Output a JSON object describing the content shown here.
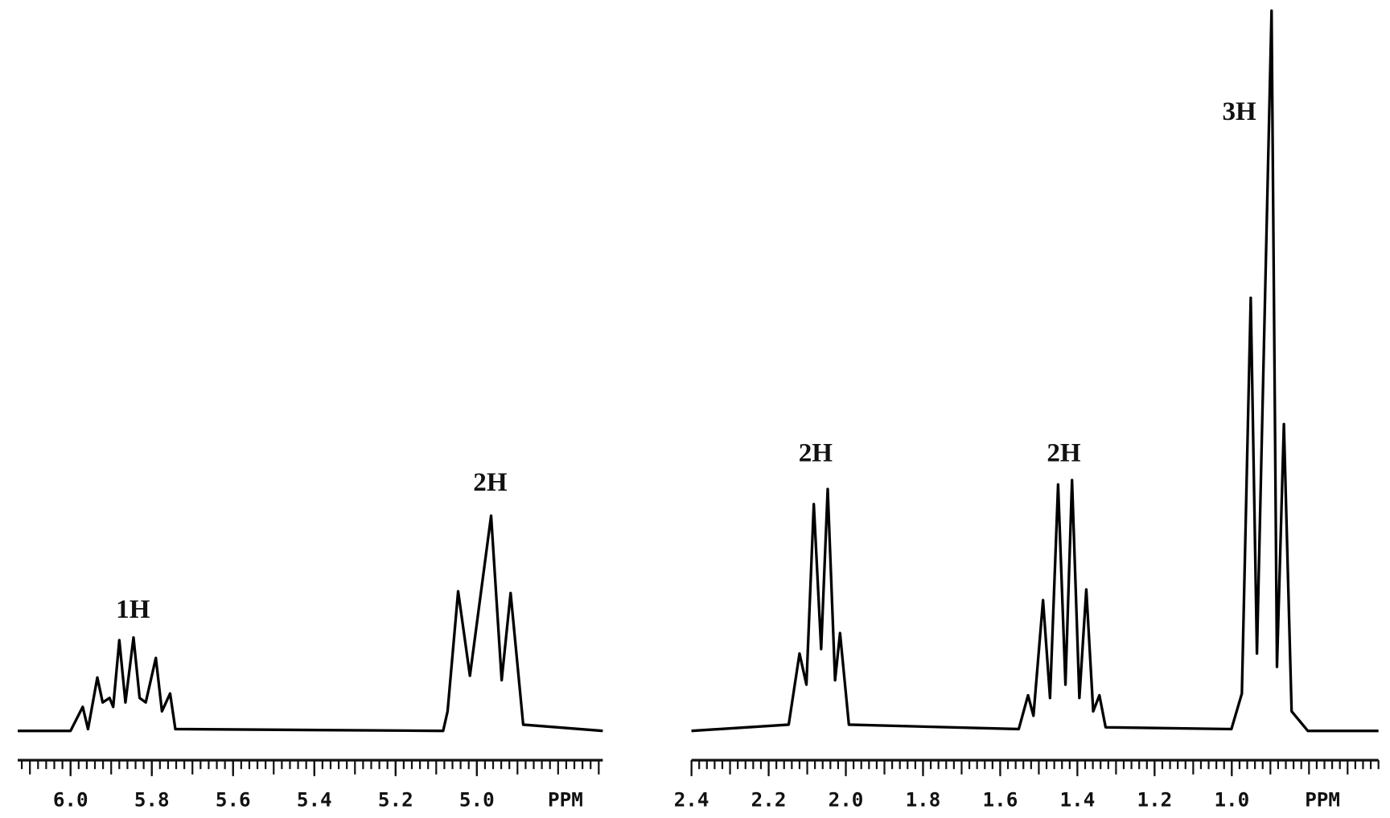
{
  "chart_data": [
    {
      "type": "line",
      "xlabel": "PPM",
      "xlim": [
        6.13,
        4.69
      ],
      "ylim": [
        0,
        822
      ],
      "xminor": 0.02,
      "color": "#000000",
      "xticks": [
        {
          "value": 6,
          "label": "6.0"
        },
        5.8,
        5.6,
        5.4,
        5.2,
        {
          "value": 5,
          "label": "5.0"
        }
      ],
      "annotations": [
        "1H",
        "2H"
      ],
      "x": [
        6.13,
        6.0,
        5.97,
        5.957,
        5.934,
        5.921,
        5.904,
        5.895,
        5.88,
        5.865,
        5.845,
        5.83,
        5.815,
        5.79,
        5.775,
        5.755,
        5.742,
        5.083,
        5.072,
        5.046,
        5.017,
        4.965,
        4.939,
        4.917,
        4.886,
        4.69
      ],
      "values": [
        0,
        0,
        27,
        2,
        60,
        32,
        37,
        27,
        102,
        32,
        105,
        37,
        32,
        82,
        22,
        42,
        2,
        0,
        22,
        157,
        62,
        242,
        57,
        155,
        7,
        0
      ]
    },
    {
      "type": "line",
      "xlabel": "PPM",
      "xlim": [
        2.4,
        0.62
      ],
      "ylim": [
        0,
        822
      ],
      "xminor": 0.02,
      "color": "#000000",
      "xticks": [
        2.4,
        2.2,
        {
          "value": 2,
          "label": "2.0"
        },
        1.8,
        1.6,
        1.4,
        1.2,
        {
          "value": 1,
          "label": "1.0"
        }
      ],
      "annotations": [
        "2H",
        "2H",
        "3H"
      ],
      "x": [
        2.4,
        2.148,
        2.12,
        2.102,
        2.083,
        2.064,
        2.047,
        2.028,
        2.015,
        1.992,
        1.552,
        1.528,
        1.514,
        1.489,
        1.471,
        1.45,
        1.431,
        1.414,
        1.395,
        1.377,
        1.359,
        1.343,
        1.327,
        1.001,
        0.974,
        0.951,
        0.935,
        0.897,
        0.883,
        0.865,
        0.845,
        0.803,
        0.62
      ],
      "values": [
        0,
        7,
        87,
        52,
        255,
        92,
        272,
        57,
        110,
        7,
        2,
        40,
        17,
        147,
        37,
        277,
        52,
        282,
        37,
        159,
        22,
        40,
        4,
        2,
        42,
        487,
        87,
        810,
        72,
        345,
        22,
        0,
        0
      ]
    }
  ]
}
